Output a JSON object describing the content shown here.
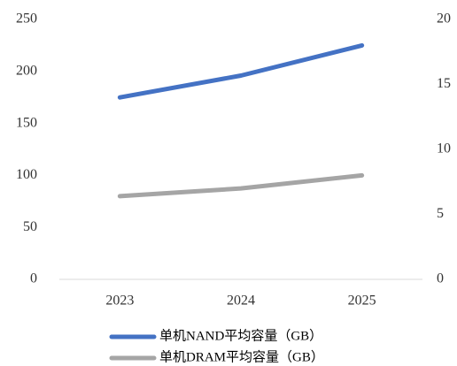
{
  "chart_data": {
    "type": "line",
    "categories": [
      "2023",
      "2024",
      "2025"
    ],
    "series": [
      {
        "name": "单机NAND平均容量（GB）",
        "color": "#4472c4",
        "values": [
          175,
          196,
          225
        ],
        "axis": "y"
      },
      {
        "name": "单机DRAM平均容量（GB）",
        "color": "#a5a5a5",
        "values": [
          6.4,
          7.0,
          8.0
        ],
        "axis": "y2"
      }
    ],
    "ylim": [
      0,
      250
    ],
    "yticks": [
      0,
      50,
      100,
      150,
      200,
      250
    ],
    "y2lim": [
      0,
      20
    ],
    "y2ticks": [
      0,
      5,
      10,
      15,
      20
    ],
    "legend": "bottom",
    "grid": false
  }
}
